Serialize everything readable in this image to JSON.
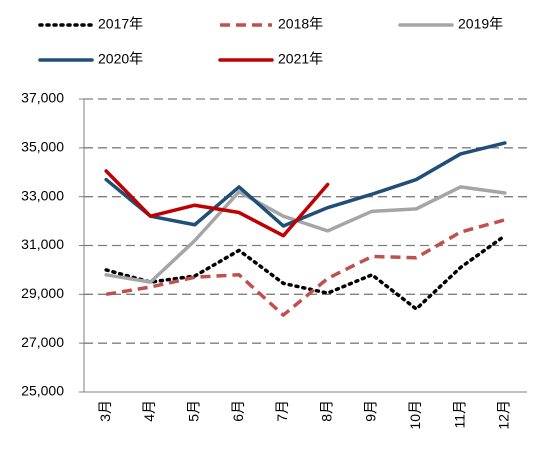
{
  "chart_data": {
    "type": "line",
    "categories": [
      "3月",
      "4月",
      "5月",
      "6月",
      "7月",
      "8月",
      "9月",
      "10月",
      "11月",
      "12月"
    ],
    "series": [
      {
        "name": "2017年",
        "color": "#000000",
        "dash": "dotted",
        "values": [
          30000,
          29500,
          29750,
          30800,
          29450,
          29050,
          29800,
          28400,
          30100,
          31400
        ]
      },
      {
        "name": "2018年",
        "color": "#c0504d",
        "dash": "dashed",
        "values": [
          29000,
          29300,
          29700,
          29800,
          28150,
          29650,
          30550,
          30500,
          31550,
          32050
        ]
      },
      {
        "name": "2019年",
        "color": "#a5a5a5",
        "dash": "solid",
        "values": [
          29800,
          29500,
          31200,
          33200,
          32200,
          31600,
          32400,
          32500,
          33400,
          33150
        ]
      },
      {
        "name": "2020年",
        "color": "#1f4e79",
        "dash": "solid",
        "values": [
          33700,
          32200,
          31850,
          33400,
          31800,
          32550,
          33100,
          33700,
          34750,
          35200
        ]
      },
      {
        "name": "2021年",
        "color": "#c00000",
        "dash": "solid",
        "values": [
          34050,
          32200,
          32650,
          32350,
          31400,
          33500,
          null,
          null,
          null,
          null
        ]
      }
    ],
    "ylim": [
      25000,
      37000
    ],
    "yticks": [
      {
        "value": 25000,
        "label": "25,000"
      },
      {
        "value": 27000,
        "label": "27,000"
      },
      {
        "value": 29000,
        "label": "29,000"
      },
      {
        "value": 31000,
        "label": "31,000"
      },
      {
        "value": 33000,
        "label": "33,000"
      },
      {
        "value": 35000,
        "label": "35,000"
      },
      {
        "value": 37000,
        "label": "37,000"
      }
    ],
    "grid": true
  }
}
